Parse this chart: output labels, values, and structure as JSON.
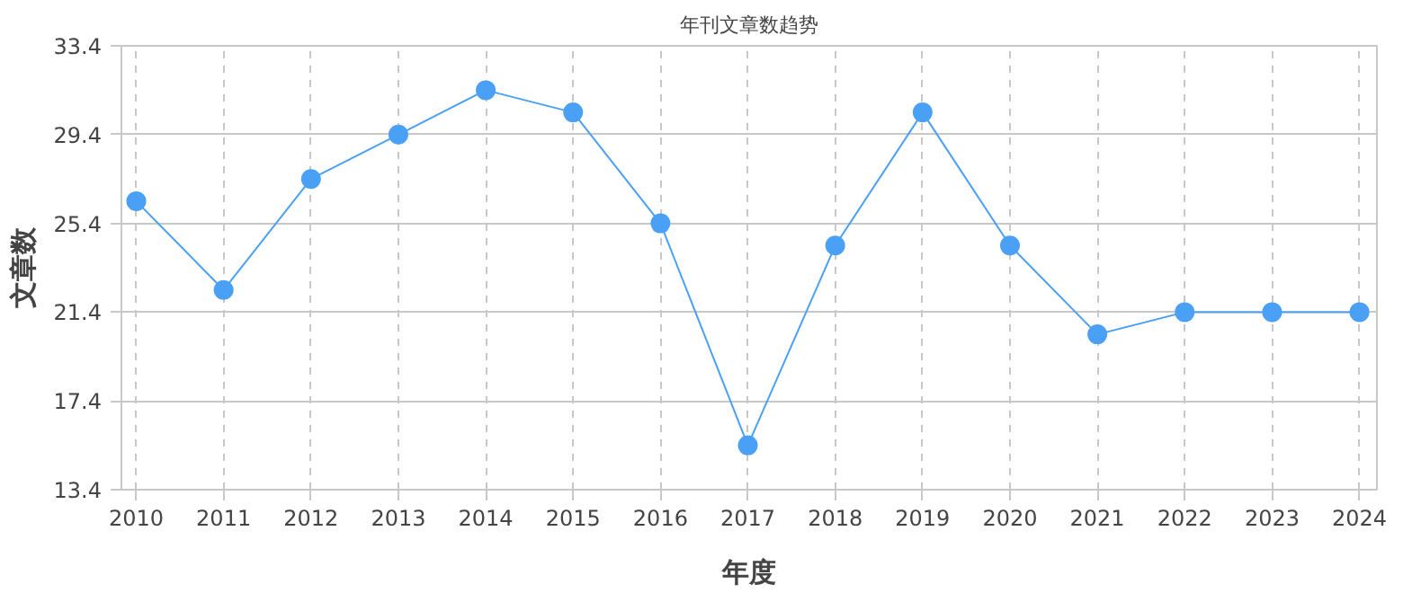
{
  "chart_data": {
    "type": "line",
    "title": "年刊文章数趋势",
    "xlabel": "年度",
    "ylabel": "文章数",
    "x": [
      2010,
      2011,
      2012,
      2013,
      2014,
      2015,
      2016,
      2017,
      2018,
      2019,
      2020,
      2021,
      2022,
      2023,
      2024
    ],
    "series": [
      {
        "color": "#4aa0f5",
        "values": [
          26.4,
          22.4,
          27.4,
          29.4,
          31.4,
          30.4,
          25.4,
          15.4,
          24.4,
          30.4,
          24.4,
          20.4,
          21.4,
          21.4,
          21.4
        ]
      }
    ],
    "xlim": [
      2009.83,
      2024.2
    ],
    "xticks": [
      2010,
      2011,
      2012,
      2013,
      2014,
      2015,
      2016,
      2017,
      2018,
      2019,
      2020,
      2021,
      2022,
      2023,
      2024
    ],
    "ylim": [
      13.4,
      33.4
    ],
    "yticks": [
      13.4,
      17.4,
      21.4,
      25.4,
      29.4,
      33.4
    ],
    "grid": true,
    "marker": "circle",
    "line_style": "solid"
  }
}
